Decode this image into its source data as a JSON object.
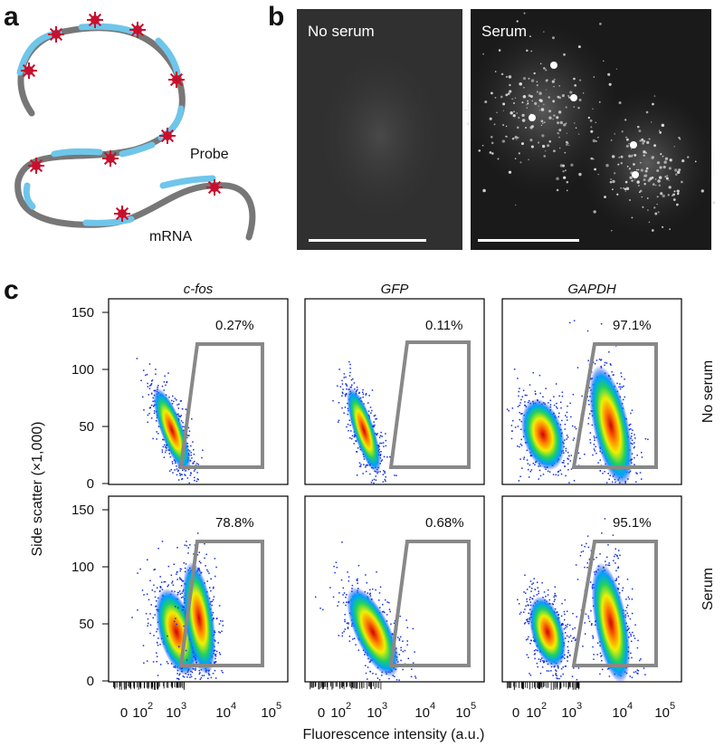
{
  "panels": {
    "a": {
      "label": "a",
      "probe": "Probe",
      "mrna": "mRNA"
    },
    "b": {
      "label": "b",
      "images": [
        "No serum",
        "Serum"
      ]
    },
    "c": {
      "label": "c",
      "columns": [
        "c-fos",
        "GFP",
        "GAPDH"
      ],
      "rows": [
        "No serum",
        "Serum"
      ],
      "gates": [
        [
          "0.27%",
          "0.11%",
          "97.1%"
        ],
        [
          "78.8%",
          "0.68%",
          "95.1%"
        ]
      ],
      "y_axis_title": "Side scatter (×1,000)",
      "x_axis_title": "Fluorescence intensity (a.u.)",
      "y_ticks": [
        "0",
        "50",
        "100",
        "150"
      ],
      "x_ticks": [
        {
          "text": "0"
        },
        {
          "text": "10",
          "sup": "2"
        },
        {
          "text": "10",
          "sup": "3"
        },
        {
          "text": "10",
          "sup": "4"
        },
        {
          "text": "10",
          "sup": "5"
        }
      ]
    }
  }
}
